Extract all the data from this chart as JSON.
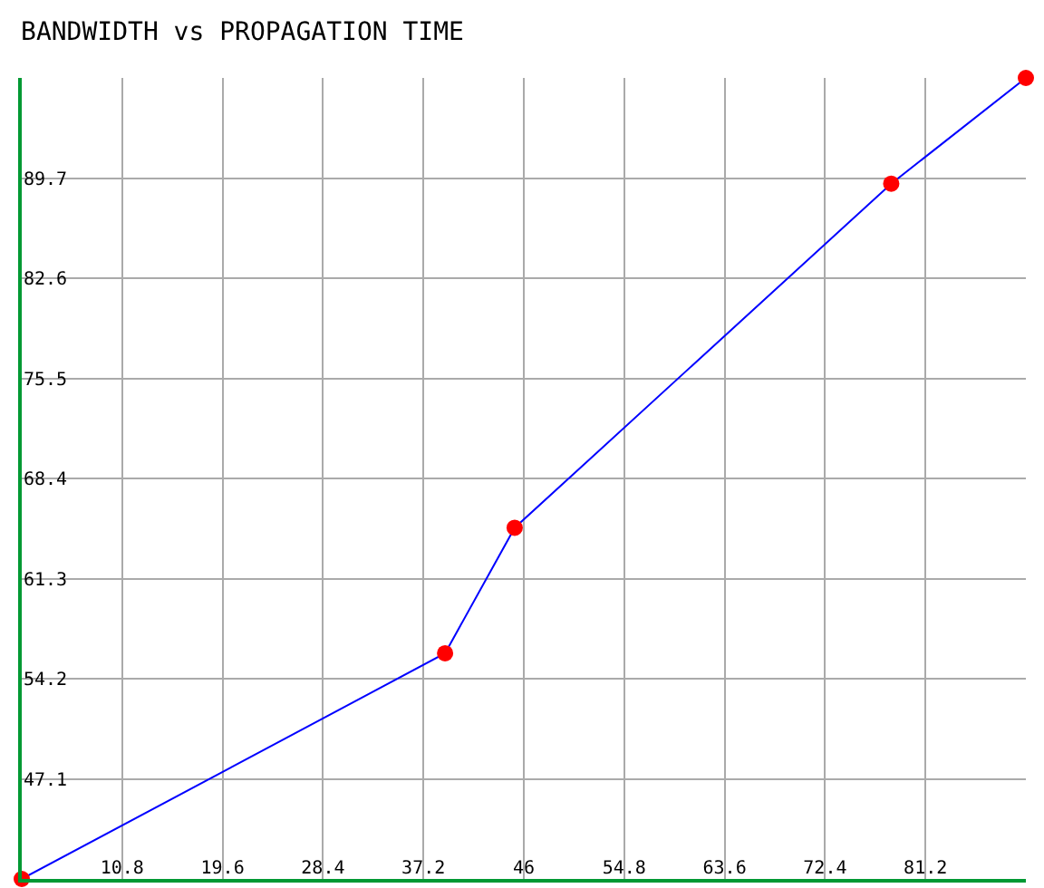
{
  "chart_data": {
    "type": "line",
    "title": "BANDWIDTH vs PROPAGATION TIME",
    "x": [
      2,
      39.1,
      45.2,
      78.2,
      90
    ],
    "series": [
      {
        "color": "#0000ff",
        "colors": [
          "#ff0000",
          "#ff0000",
          "#ff0000",
          "#ff0000",
          "#ff0000"
        ],
        "values": [
          40,
          56,
          64.9,
          89.3,
          96.8
        ]
      }
    ],
    "marker": "circle",
    "line_style": "solid",
    "xlim": [
      2,
      90
    ],
    "xticks": [
      10.8,
      19.6,
      28.4,
      37.2,
      46,
      54.8,
      63.6,
      72.4,
      81.2
    ],
    "ylim": [
      40,
      96.8
    ],
    "yticks": [
      47.1,
      54.2,
      61.3,
      68.4,
      75.5,
      82.6,
      89.7
    ],
    "grid": true
  }
}
